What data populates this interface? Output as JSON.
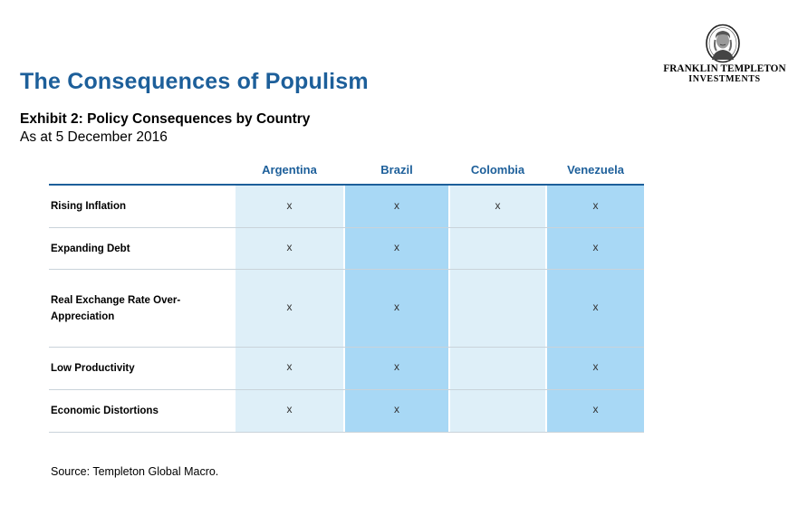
{
  "page": {
    "title": "The Consequences of Populism"
  },
  "logo": {
    "line1": "FRANKLIN TEMPLETON",
    "line2": "INVESTMENTS"
  },
  "exhibit": {
    "title": "Exhibit 2: Policy Consequences by Country",
    "date": "As at 5 December 2016"
  },
  "table": {
    "columns": [
      "Argentina",
      "Brazil",
      "Colombia",
      "Venezuela"
    ],
    "rows": [
      {
        "label": "Rising Inflation",
        "cells": [
          "x",
          "x",
          "x",
          "x"
        ]
      },
      {
        "label": "Expanding Debt",
        "cells": [
          "x",
          "x",
          "",
          "x"
        ]
      },
      {
        "label": "Real Exchange Rate Over-Appreciation",
        "cells": [
          "x",
          "x",
          "",
          "x"
        ]
      },
      {
        "label": "Low Productivity",
        "cells": [
          "x",
          "x",
          "",
          "x"
        ]
      },
      {
        "label": "Economic Distortions",
        "cells": [
          "x",
          "x",
          "",
          "x"
        ]
      }
    ]
  },
  "source": "Source: Templeton Global Macro.",
  "colors": {
    "title_blue": "#1d5f9a",
    "column_light": "#deeff8",
    "column_blue": "#a8d8f5"
  }
}
